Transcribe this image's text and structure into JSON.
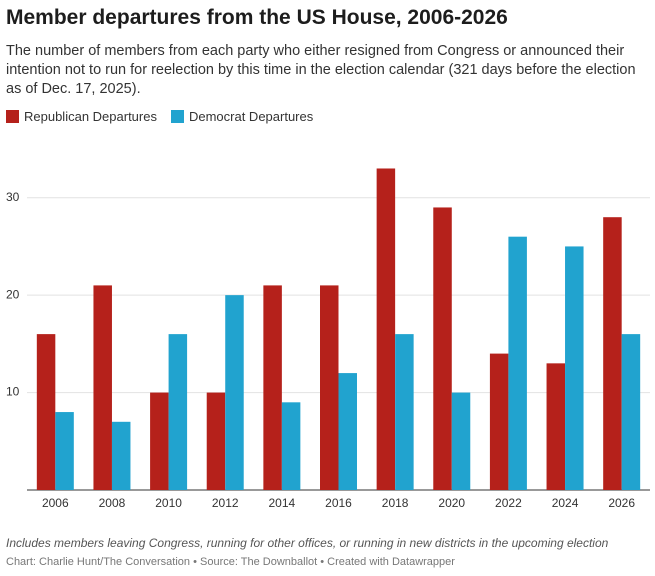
{
  "chart_data": {
    "type": "bar",
    "title": "Member departures from the US House, 2006-2026",
    "subtitle": "The number of members from each party who either resigned from Congress or announced their intention not to run for reelection by this time in the election calendar (321 days before the election as of Dec. 17, 2025).",
    "categories": [
      "2006",
      "2008",
      "2010",
      "2012",
      "2014",
      "2016",
      "2018",
      "2020",
      "2022",
      "2024",
      "2026"
    ],
    "series": [
      {
        "name": "Republican Departures",
        "color": "#b5211b",
        "values": [
          16,
          21,
          10,
          10,
          21,
          21,
          33,
          29,
          14,
          13,
          28
        ]
      },
      {
        "name": "Democrat Departures",
        "color": "#21a3cf",
        "values": [
          8,
          7,
          16,
          20,
          9,
          12,
          16,
          10,
          26,
          25,
          16
        ]
      }
    ],
    "ylim": [
      0,
      35
    ],
    "yticks": [
      10,
      20,
      30
    ],
    "grid": true,
    "note": "Includes members leaving Congress, running for other offices, or running in new districts in the upcoming election",
    "credit": "Chart: Charlie Hunt/The Conversation • Source: The Downballot • Created with Datawrapper"
  }
}
